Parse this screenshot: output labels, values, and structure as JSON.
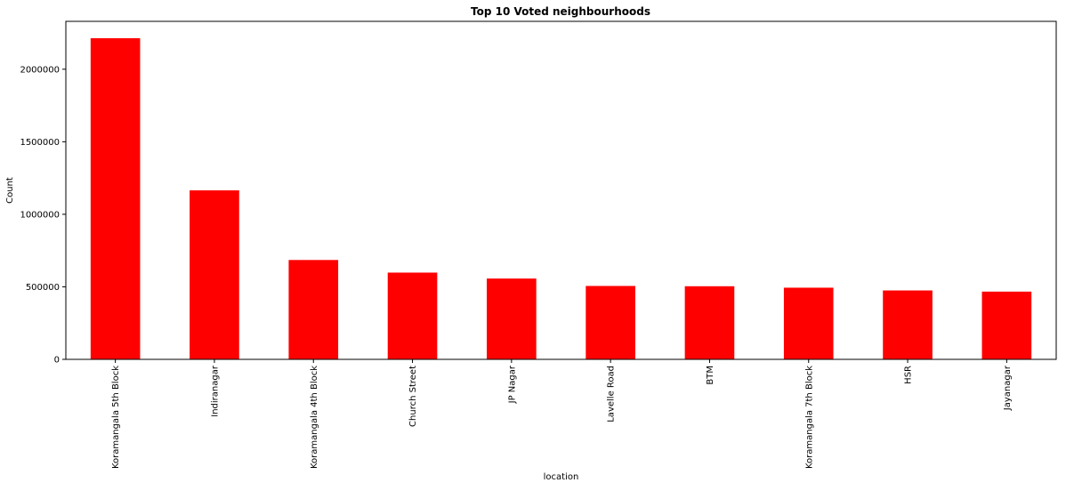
{
  "chart_data": {
    "type": "bar",
    "title": "Top 10 Voted neighbourhoods",
    "xlabel": "location",
    "ylabel": "Count",
    "categories": [
      "Koramangala 5th Block",
      "Indiranagar",
      "Koramangala 4th Block",
      "Church Street",
      "JP Nagar",
      "Lavelle Road",
      "BTM",
      "Koramangala 7th Block",
      "HSR",
      "Jayanagar"
    ],
    "values": [
      2214000,
      1165000,
      685000,
      598000,
      557000,
      506000,
      504000,
      494000,
      475000,
      467000
    ],
    "ylim": [
      0,
      2330000
    ],
    "yticks": [
      0,
      500000,
      1000000,
      1500000,
      2000000
    ],
    "ytick_labels": [
      "0",
      "500000",
      "1000000",
      "1500000",
      "2000000"
    ],
    "bar_color": "#ff0000",
    "grid": false,
    "legend": "none"
  }
}
